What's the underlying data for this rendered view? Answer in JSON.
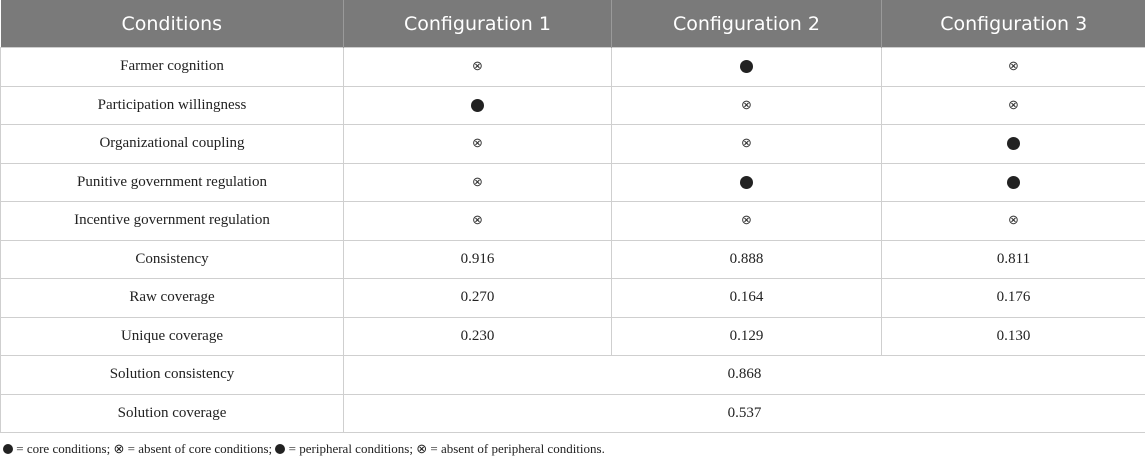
{
  "table": {
    "headers": [
      "Conditions",
      "Configuration 1",
      "Configuration 2",
      "Configuration 3"
    ],
    "condition_rows": [
      {
        "label": "Farmer cognition",
        "cells": [
          "absent",
          "core",
          "absent"
        ]
      },
      {
        "label": "Participation willingness",
        "cells": [
          "core",
          "absent",
          "absent"
        ]
      },
      {
        "label": "Organizational coupling",
        "cells": [
          "absent",
          "absent",
          "core"
        ]
      },
      {
        "label": "Punitive government regulation",
        "cells": [
          "absent",
          "core",
          "core"
        ]
      },
      {
        "label": "Incentive government regulation",
        "cells": [
          "absent",
          "absent",
          "absent"
        ]
      }
    ],
    "metric_rows": [
      {
        "label": "Consistency",
        "values": [
          "0.916",
          "0.888",
          "0.811"
        ]
      },
      {
        "label": "Raw coverage",
        "values": [
          "0.270",
          "0.164",
          "0.176"
        ]
      },
      {
        "label": "Unique coverage",
        "values": [
          "0.230",
          "0.129",
          "0.130"
        ]
      }
    ],
    "solution_rows": [
      {
        "label": "Solution consistency",
        "value": "0.868"
      },
      {
        "label": "Solution coverage",
        "value": "0.537"
      }
    ]
  },
  "symbols": {
    "absent": "⊗"
  },
  "legend": {
    "core_text": " = core conditions; ",
    "absent_core_text": "⊗ = absent of core conditions; ",
    "peripheral_text": " = peripheral conditions; ",
    "absent_peripheral_text": "⊗ = absent of peripheral conditions."
  }
}
